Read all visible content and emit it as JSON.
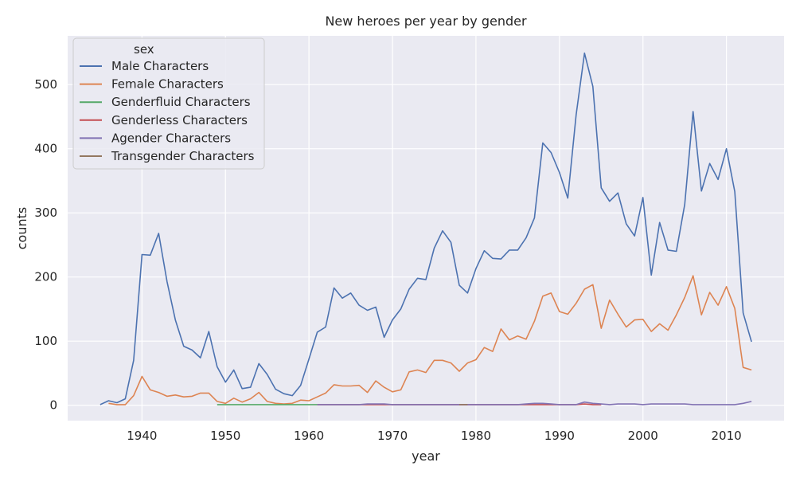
{
  "chart_data": {
    "type": "line",
    "title": "New heroes per year by gender",
    "xlabel": "year",
    "ylabel": "counts",
    "xlim": [
      1931.1,
      2016.9
    ],
    "ylim": [
      -24,
      576
    ],
    "xticks": [
      1940,
      1950,
      1960,
      1970,
      1980,
      1990,
      2000,
      2010
    ],
    "yticks": [
      0,
      100,
      200,
      300,
      400,
      500
    ],
    "grid": true,
    "legend": {
      "title": "sex",
      "placement": "top-left"
    },
    "series": [
      {
        "name": "Male Characters",
        "color": "#4c72b0",
        "points": [
          [
            1935,
            1
          ],
          [
            1936,
            7
          ],
          [
            1937,
            4
          ],
          [
            1938,
            10
          ],
          [
            1939,
            70
          ],
          [
            1940,
            235
          ],
          [
            1941,
            234
          ],
          [
            1942,
            268
          ],
          [
            1943,
            193
          ],
          [
            1944,
            133
          ],
          [
            1945,
            92
          ],
          [
            1946,
            86
          ],
          [
            1947,
            74
          ],
          [
            1948,
            115
          ],
          [
            1949,
            60
          ],
          [
            1950,
            36
          ],
          [
            1951,
            55
          ],
          [
            1952,
            26
          ],
          [
            1953,
            28
          ],
          [
            1954,
            65
          ],
          [
            1955,
            48
          ],
          [
            1956,
            25
          ],
          [
            1957,
            18
          ],
          [
            1958,
            15
          ],
          [
            1959,
            31
          ],
          [
            1960,
            72
          ],
          [
            1961,
            114
          ],
          [
            1962,
            122
          ],
          [
            1963,
            183
          ],
          [
            1964,
            167
          ],
          [
            1965,
            175
          ],
          [
            1966,
            156
          ],
          [
            1967,
            148
          ],
          [
            1968,
            153
          ],
          [
            1969,
            106
          ],
          [
            1970,
            133
          ],
          [
            1971,
            150
          ],
          [
            1972,
            181
          ],
          [
            1973,
            198
          ],
          [
            1974,
            196
          ],
          [
            1975,
            245
          ],
          [
            1976,
            272
          ],
          [
            1977,
            254
          ],
          [
            1978,
            187
          ],
          [
            1979,
            175
          ],
          [
            1980,
            213
          ],
          [
            1981,
            241
          ],
          [
            1982,
            229
          ],
          [
            1983,
            228
          ],
          [
            1984,
            242
          ],
          [
            1985,
            242
          ],
          [
            1986,
            261
          ],
          [
            1987,
            292
          ],
          [
            1988,
            409
          ],
          [
            1989,
            394
          ],
          [
            1990,
            363
          ],
          [
            1991,
            323
          ],
          [
            1992,
            453
          ],
          [
            1993,
            549
          ],
          [
            1994,
            497
          ],
          [
            1995,
            339
          ],
          [
            1996,
            318
          ],
          [
            1997,
            331
          ],
          [
            1998,
            283
          ],
          [
            1999,
            264
          ],
          [
            2000,
            324
          ],
          [
            2001,
            203
          ],
          [
            2002,
            285
          ],
          [
            2003,
            242
          ],
          [
            2004,
            240
          ],
          [
            2005,
            313
          ],
          [
            2006,
            458
          ],
          [
            2007,
            334
          ],
          [
            2008,
            377
          ],
          [
            2009,
            352
          ],
          [
            2010,
            400
          ],
          [
            2011,
            333
          ],
          [
            2012,
            144
          ],
          [
            2013,
            99
          ]
        ]
      },
      {
        "name": "Female Characters",
        "color": "#dd8452",
        "points": [
          [
            1936,
            3
          ],
          [
            1937,
            1
          ],
          [
            1938,
            1
          ],
          [
            1939,
            15
          ],
          [
            1940,
            45
          ],
          [
            1941,
            24
          ],
          [
            1942,
            20
          ],
          [
            1943,
            14
          ],
          [
            1944,
            16
          ],
          [
            1945,
            13
          ],
          [
            1946,
            14
          ],
          [
            1947,
            19
          ],
          [
            1948,
            19
          ],
          [
            1949,
            6
          ],
          [
            1950,
            3
          ],
          [
            1951,
            11
          ],
          [
            1952,
            5
          ],
          [
            1953,
            10
          ],
          [
            1954,
            20
          ],
          [
            1955,
            6
          ],
          [
            1956,
            3
          ],
          [
            1957,
            2
          ],
          [
            1958,
            3
          ],
          [
            1959,
            8
          ],
          [
            1960,
            7
          ],
          [
            1961,
            13
          ],
          [
            1962,
            19
          ],
          [
            1963,
            32
          ],
          [
            1964,
            30
          ],
          [
            1965,
            30
          ],
          [
            1966,
            31
          ],
          [
            1967,
            20
          ],
          [
            1968,
            38
          ],
          [
            1969,
            28
          ],
          [
            1970,
            21
          ],
          [
            1971,
            24
          ],
          [
            1972,
            52
          ],
          [
            1973,
            55
          ],
          [
            1974,
            51
          ],
          [
            1975,
            70
          ],
          [
            1976,
            70
          ],
          [
            1977,
            66
          ],
          [
            1978,
            53
          ],
          [
            1979,
            66
          ],
          [
            1980,
            71
          ],
          [
            1981,
            90
          ],
          [
            1982,
            84
          ],
          [
            1983,
            119
          ],
          [
            1984,
            102
          ],
          [
            1985,
            108
          ],
          [
            1986,
            103
          ],
          [
            1987,
            131
          ],
          [
            1988,
            170
          ],
          [
            1989,
            175
          ],
          [
            1990,
            146
          ],
          [
            1991,
            142
          ],
          [
            1992,
            159
          ],
          [
            1993,
            181
          ],
          [
            1994,
            188
          ],
          [
            1995,
            120
          ],
          [
            1996,
            164
          ],
          [
            1997,
            142
          ],
          [
            1998,
            122
          ],
          [
            1999,
            133
          ],
          [
            2000,
            134
          ],
          [
            2001,
            115
          ],
          [
            2002,
            127
          ],
          [
            2003,
            117
          ],
          [
            2004,
            141
          ],
          [
            2005,
            168
          ],
          [
            2006,
            202
          ],
          [
            2007,
            141
          ],
          [
            2008,
            176
          ],
          [
            2009,
            156
          ],
          [
            2010,
            185
          ],
          [
            2011,
            151
          ],
          [
            2012,
            59
          ],
          [
            2013,
            55
          ]
        ]
      },
      {
        "name": "Genderfluid Characters",
        "color": "#55a868",
        "points": [
          [
            1949,
            1
          ],
          [
            1950,
            1
          ],
          [
            1951,
            1
          ],
          [
            1952,
            1
          ],
          [
            1953,
            1
          ],
          [
            1954,
            1
          ],
          [
            1955,
            1
          ],
          [
            1956,
            1
          ],
          [
            1957,
            1
          ],
          [
            1958,
            1
          ],
          [
            1959,
            1
          ],
          [
            1960,
            1
          ],
          [
            1961,
            1
          ]
        ]
      },
      {
        "name": "Genderless Characters",
        "color": "#c44e52",
        "points": [
          [
            1961,
            1
          ],
          [
            1962,
            1
          ],
          [
            1963,
            1
          ],
          [
            1964,
            1
          ],
          [
            1990,
            1
          ],
          [
            1991,
            1
          ],
          [
            1992,
            1
          ],
          [
            1993,
            2
          ],
          [
            1994,
            1
          ],
          [
            1995,
            1
          ]
        ]
      },
      {
        "name": "Agender Characters",
        "color": "#8172b3",
        "points": [
          [
            1961,
            1
          ],
          [
            1965,
            1
          ],
          [
            1966,
            1
          ],
          [
            1967,
            2
          ],
          [
            1968,
            2
          ],
          [
            1969,
            2
          ],
          [
            1970,
            1
          ],
          [
            1975,
            1
          ],
          [
            1980,
            1
          ],
          [
            1985,
            1
          ],
          [
            1986,
            2
          ],
          [
            1987,
            3
          ],
          [
            1988,
            3
          ],
          [
            1989,
            2
          ],
          [
            1990,
            1
          ],
          [
            1991,
            1
          ],
          [
            1992,
            1
          ],
          [
            1993,
            5
          ],
          [
            1994,
            3
          ],
          [
            1995,
            2
          ],
          [
            1996,
            1
          ],
          [
            1997,
            2
          ],
          [
            1998,
            2
          ],
          [
            1999,
            2
          ],
          [
            2000,
            1
          ],
          [
            2001,
            2
          ],
          [
            2002,
            2
          ],
          [
            2003,
            2
          ],
          [
            2004,
            2
          ],
          [
            2005,
            2
          ],
          [
            2006,
            1
          ],
          [
            2007,
            1
          ],
          [
            2008,
            1
          ],
          [
            2009,
            1
          ],
          [
            2010,
            1
          ],
          [
            2011,
            1
          ],
          [
            2012,
            3
          ],
          [
            2013,
            6
          ]
        ]
      },
      {
        "name": "Transgender Characters",
        "color": "#937860",
        "points": [
          [
            1978,
            1
          ],
          [
            1979,
            1
          ]
        ]
      }
    ]
  }
}
